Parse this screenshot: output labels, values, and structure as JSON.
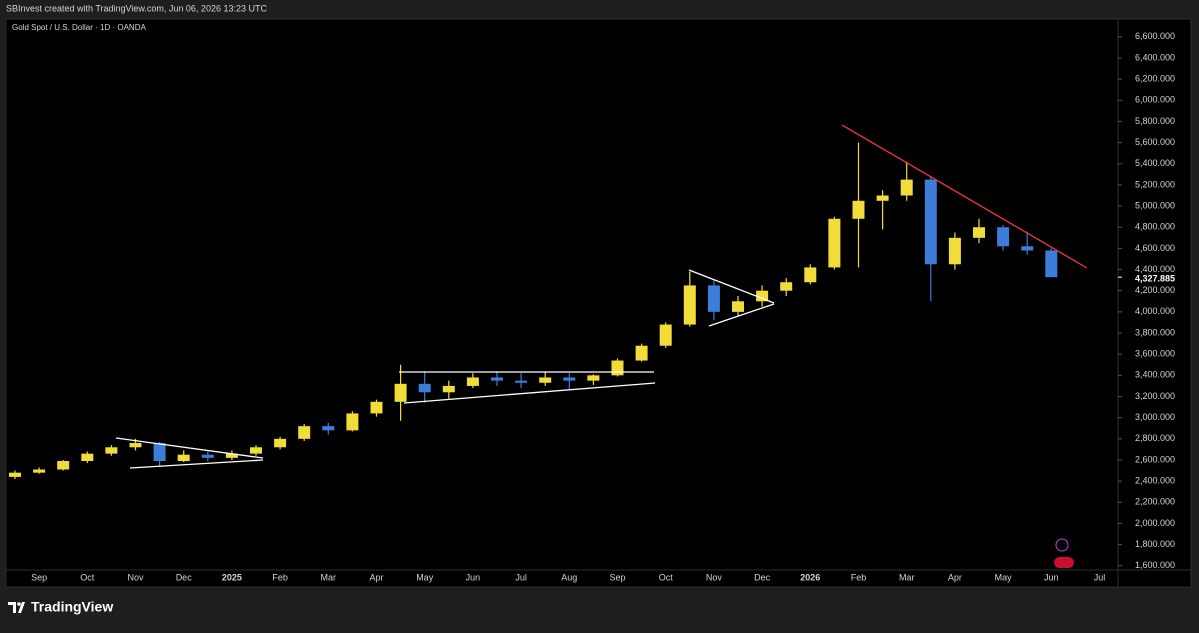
{
  "header": {
    "credit": "SBInvest created with TradingView.com, Jun 06, 2026 13:23 UTC"
  },
  "footer": {
    "brand": "TradingView"
  },
  "chart_data": {
    "type": "candlestick",
    "title": "Gold Spot / U.S. Dollar · 1D · OANDA",
    "categories": [
      null,
      "Sep",
      null,
      "Oct",
      null,
      "Nov",
      null,
      "Dec",
      null,
      "2025",
      null,
      "Feb",
      null,
      "Mar",
      null,
      "Apr",
      null,
      "May",
      null,
      "Jun",
      null,
      "Jul",
      null,
      "Aug",
      null,
      "Sep",
      null,
      "Oct",
      null,
      "Nov",
      null,
      "Dec",
      null,
      "2026",
      null,
      "Feb",
      null,
      "Mar",
      null,
      "Apr",
      null,
      "May",
      null,
      "Jun",
      null,
      "Jul"
    ],
    "series": [
      {
        "name": "open",
        "values": [
          2440,
          2480,
          2510,
          2590,
          2660,
          2720,
          2760,
          2590,
          2650,
          2620,
          2660,
          2720,
          2800,
          2920,
          2880,
          3040,
          3150,
          3320,
          3240,
          3300,
          3380,
          3350,
          3330,
          3380,
          3350,
          3400,
          3540,
          3680,
          3880,
          4250,
          4000,
          4100,
          4200,
          4280,
          4420,
          4880,
          5050,
          5100,
          5250,
          4450,
          4700,
          4800,
          4620,
          4580,
          null,
          null
        ]
      },
      {
        "name": "high",
        "values": [
          2500,
          2530,
          2600,
          2680,
          2740,
          2800,
          2770,
          2690,
          2680,
          2690,
          2740,
          2820,
          2940,
          2950,
          3060,
          3170,
          3500,
          3440,
          3350,
          3420,
          3440,
          3420,
          3430,
          3420,
          3410,
          3560,
          3700,
          3900,
          4380,
          4300,
          4150,
          4250,
          4320,
          4450,
          4900,
          5600,
          5150,
          5420,
          5280,
          4750,
          4880,
          4820,
          4760,
          4600,
          null,
          null
        ]
      },
      {
        "name": "low",
        "values": [
          2420,
          2470,
          2500,
          2570,
          2640,
          2690,
          2540,
          2580,
          2590,
          2600,
          2640,
          2700,
          2780,
          2840,
          2870,
          3010,
          2970,
          3140,
          3180,
          3280,
          3300,
          3280,
          3300,
          3270,
          3310,
          3390,
          3530,
          3660,
          3860,
          3920,
          3960,
          4050,
          4150,
          4260,
          4400,
          4420,
          4780,
          5050,
          4100,
          4400,
          4650,
          4580,
          4540,
          4330,
          null,
          null
        ]
      },
      {
        "name": "close",
        "values": [
          2480,
          2510,
          2590,
          2660,
          2720,
          2760,
          2590,
          2650,
          2620,
          2660,
          2720,
          2800,
          2920,
          2880,
          3040,
          3150,
          3320,
          3240,
          3300,
          3380,
          3350,
          3330,
          3380,
          3350,
          3400,
          3540,
          3680,
          3880,
          4250,
          4000,
          4100,
          4200,
          4280,
          4420,
          4880,
          5050,
          5100,
          5250,
          4450,
          4700,
          4800,
          4620,
          4580,
          4327.885,
          null,
          null
        ]
      }
    ],
    "up_color": "#f2dc3a",
    "down_color": "#3b7dd8",
    "last_price": {
      "value": 4327.885,
      "label": "4,327.885"
    },
    "ylim": [
      1560,
      6740
    ],
    "yticks": [
      {
        "value": 1600,
        "label": "1,600.000"
      },
      {
        "value": 1800,
        "label": "1,800.000"
      },
      {
        "value": 2000,
        "label": "2,000.000"
      },
      {
        "value": 2200,
        "label": "2,200.000"
      },
      {
        "value": 2400,
        "label": "2,400.000"
      },
      {
        "value": 2600,
        "label": "2,600.000"
      },
      {
        "value": 2800,
        "label": "2,800.000"
      },
      {
        "value": 3000,
        "label": "3,000.000"
      },
      {
        "value": 3200,
        "label": "3,200.000"
      },
      {
        "value": 3400,
        "label": "3,400.000"
      },
      {
        "value": 3600,
        "label": "3,600.000"
      },
      {
        "value": 3800,
        "label": "3,800.000"
      },
      {
        "value": 4000,
        "label": "4,000.000"
      },
      {
        "value": 4200,
        "label": "4,200.000"
      },
      {
        "value": 4400,
        "label": "4,400.000"
      },
      {
        "value": 4600,
        "label": "4,600.000"
      },
      {
        "value": 4800,
        "label": "4,800.000"
      },
      {
        "value": 5000,
        "label": "5,000.000"
      },
      {
        "value": 5200,
        "label": "5,200.000"
      },
      {
        "value": 5400,
        "label": "5,400.000"
      },
      {
        "value": 5600,
        "label": "5,600.000"
      },
      {
        "value": 5800,
        "label": "5,800.000"
      },
      {
        "value": 6000,
        "label": "6,000.000"
      },
      {
        "value": 6200,
        "label": "6,200.000"
      },
      {
        "value": 6400,
        "label": "6,400.000"
      },
      {
        "value": 6600,
        "label": "6,600.000"
      }
    ],
    "grid": false
  }
}
